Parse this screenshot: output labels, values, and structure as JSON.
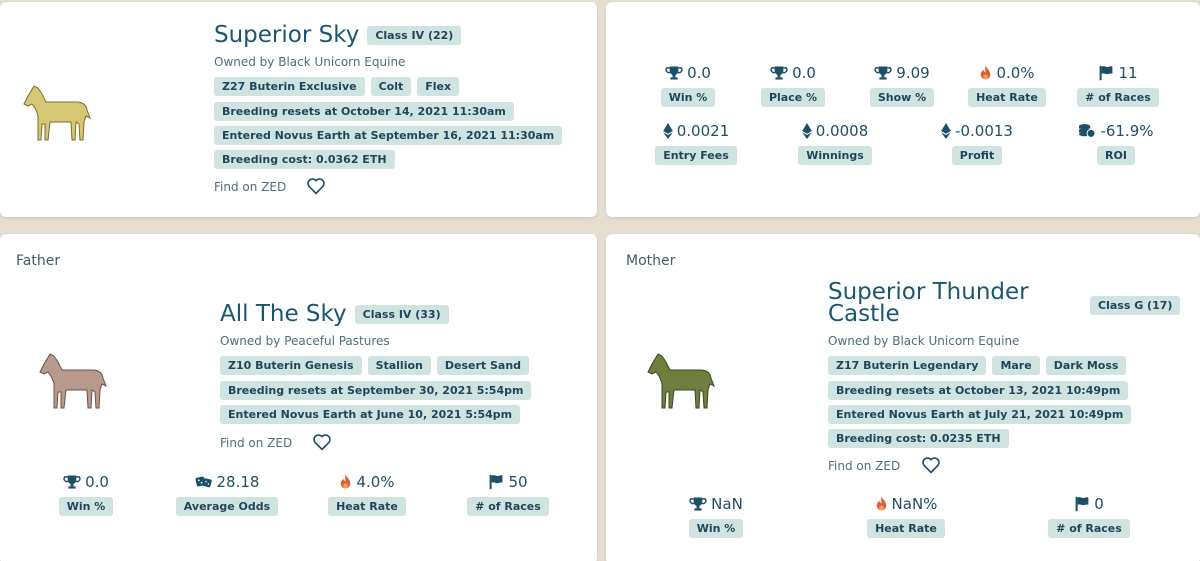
{
  "colors": {
    "background": "#e6dfd1",
    "card": "#ffffff",
    "tag": "#cfe3e1",
    "text": "#1d4f66",
    "flame": "#d9603b"
  },
  "horse": {
    "name": "Superior Sky",
    "class_tag": "Class IV (22)",
    "owner": "Owned by Black Unicorn Equine",
    "tags": [
      "Z27 Buterin Exclusive",
      "Colt",
      "Flex"
    ],
    "breeding_resets": "Breeding resets at October 14, 2021 11:30am",
    "entered": "Entered Novus Earth at September 16, 2021 11:30am",
    "breeding_cost": "Breeding cost: 0.0362 ETH",
    "find_on": "Find on ZED",
    "horse_color": "#d6c873"
  },
  "stats": {
    "row1": [
      {
        "icon": "trophy-icon",
        "value": "0.0",
        "label": "Win %"
      },
      {
        "icon": "trophy-icon",
        "value": "0.0",
        "label": "Place %"
      },
      {
        "icon": "trophy-icon",
        "value": "9.09",
        "label": "Show %"
      },
      {
        "icon": "flame-icon",
        "value": "0.0%",
        "label": "Heat Rate"
      },
      {
        "icon": "flag-icon",
        "value": "11",
        "label": "# of Races"
      }
    ],
    "row2": [
      {
        "icon": "eth-icon",
        "value": "0.0021",
        "label": "Entry Fees"
      },
      {
        "icon": "eth-icon",
        "value": "0.0008",
        "label": "Winnings"
      },
      {
        "icon": "eth-icon",
        "value": "-0.0013",
        "label": "Profit"
      },
      {
        "icon": "coins-icon",
        "value": "-61.9%",
        "label": "ROI"
      }
    ]
  },
  "father": {
    "section_label": "Father",
    "name": "All The Sky",
    "class_tag": "Class IV (33)",
    "owner": "Owned by Peaceful Pastures",
    "tags": [
      "Z10 Buterin Genesis",
      "Stallion",
      "Desert Sand"
    ],
    "breeding_resets": "Breeding resets at September 30, 2021 5:54pm",
    "entered": "Entered Novus Earth at June 10, 2021 5:54pm",
    "find_on": "Find on ZED",
    "horse_color": "#b89a8c",
    "stats": [
      {
        "icon": "trophy-icon",
        "value": "0.0",
        "label": "Win %"
      },
      {
        "icon": "dice-icon",
        "value": "28.18",
        "label": "Average Odds"
      },
      {
        "icon": "flame-icon",
        "value": "4.0%",
        "label": "Heat Rate"
      },
      {
        "icon": "flag-icon",
        "value": "50",
        "label": "# of Races"
      }
    ]
  },
  "mother": {
    "section_label": "Mother",
    "name_line1": "Superior Thunder",
    "name_line2": "Castle",
    "class_tag": "Class G (17)",
    "owner": "Owned by Black Unicorn Equine",
    "tags": [
      "Z17 Buterin Legendary",
      "Mare",
      "Dark Moss"
    ],
    "breeding_resets": "Breeding resets at October 13, 2021 10:49pm",
    "entered": "Entered Novus Earth at July 21, 2021 10:49pm",
    "breeding_cost": "Breeding cost: 0.0235 ETH",
    "find_on": "Find on ZED",
    "horse_color": "#6f7e3e",
    "stats": [
      {
        "icon": "trophy-icon",
        "value": "NaN",
        "label": "Win %"
      },
      {
        "icon": "flame-icon",
        "value": "NaN%",
        "label": "Heat Rate"
      },
      {
        "icon": "flag-icon",
        "value": "0",
        "label": "# of Races"
      }
    ]
  }
}
